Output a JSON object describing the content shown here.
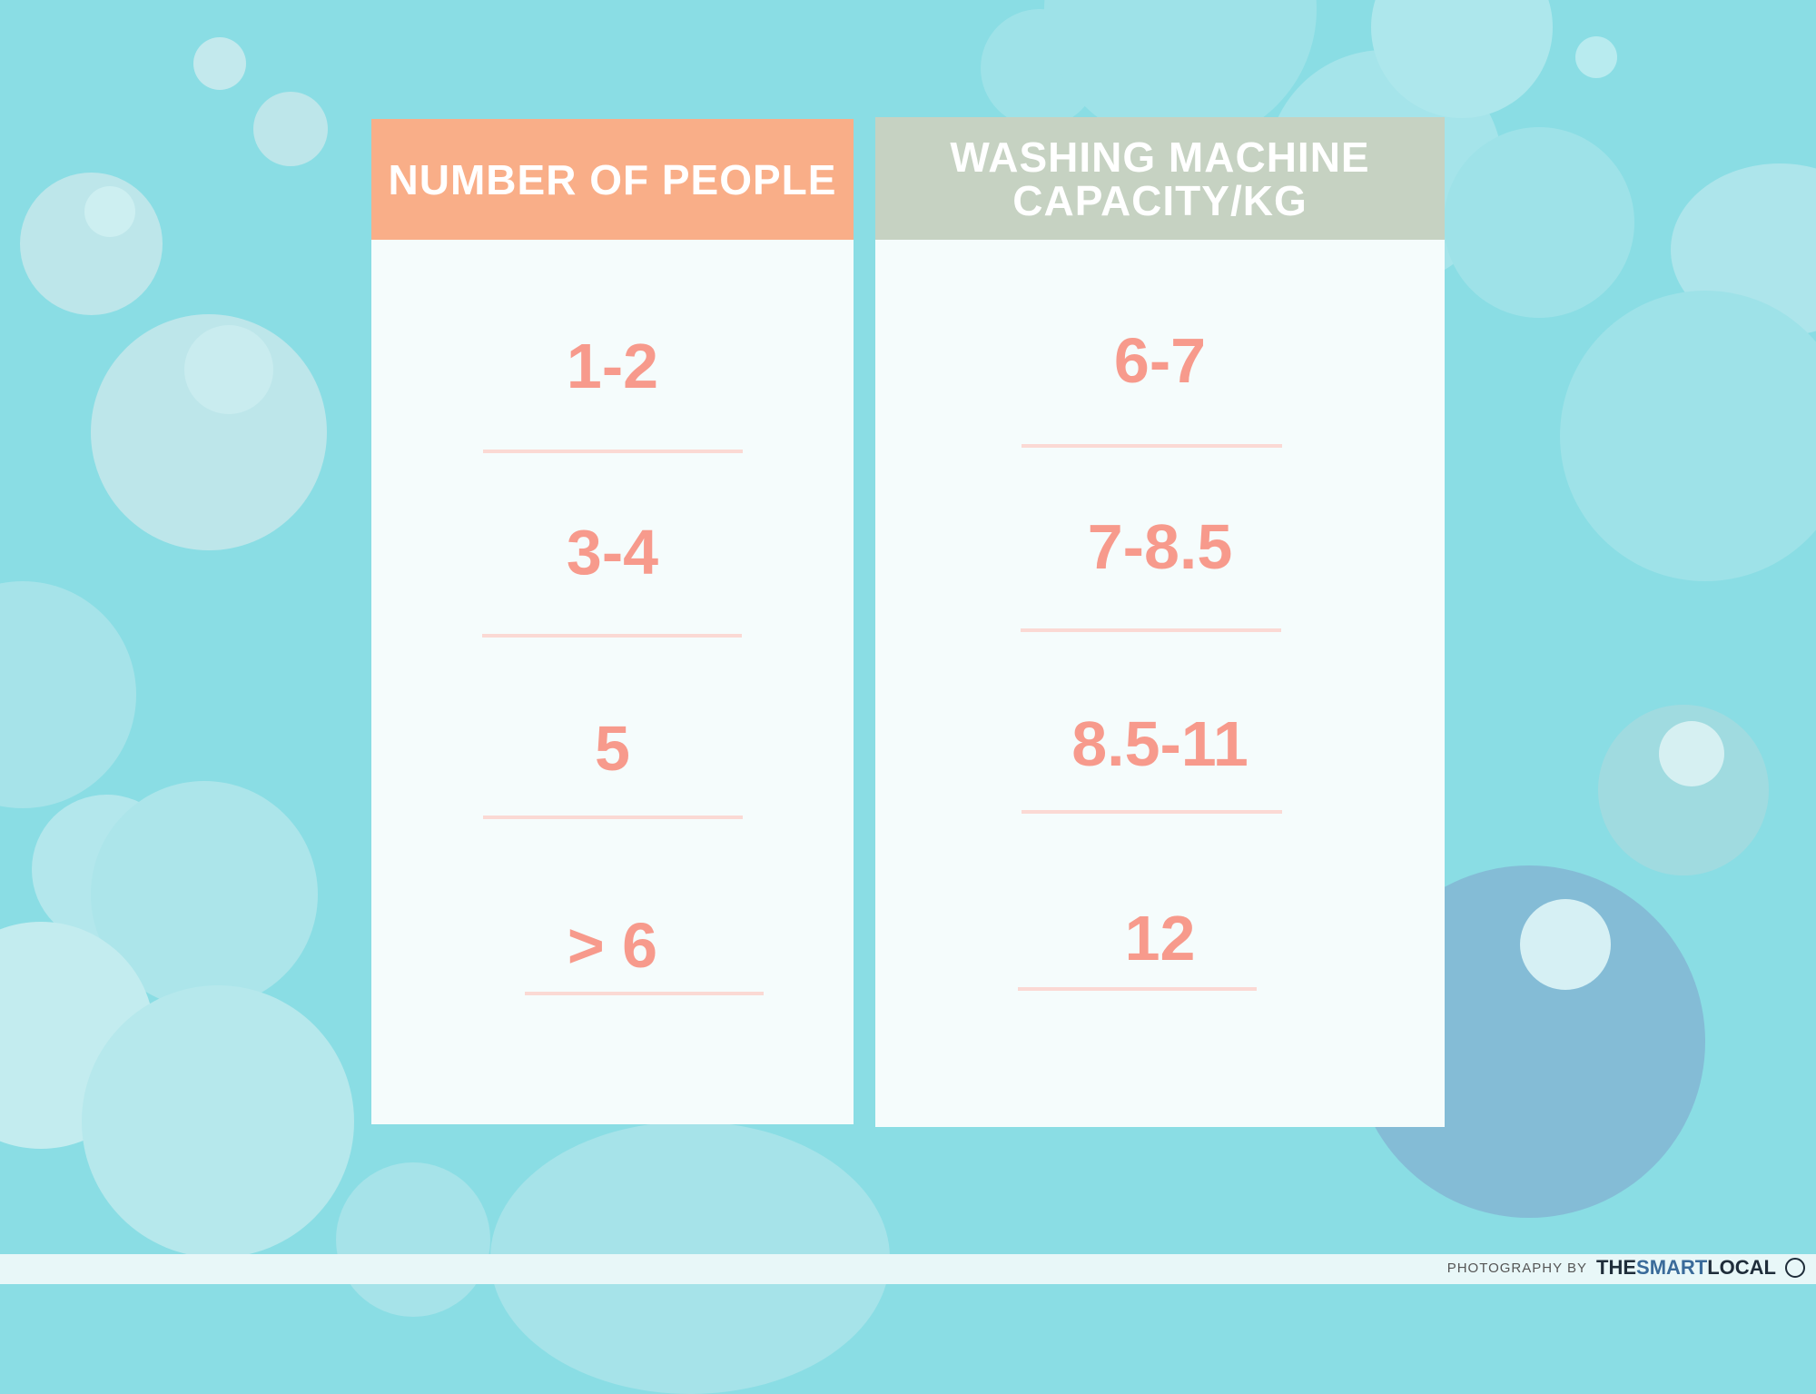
{
  "colors": {
    "background": "#8adde4",
    "people_header": "#f9ae88",
    "capacity_header": "#c6d2c2",
    "value_text": "#f79a8c",
    "divider": "#fbd9d4"
  },
  "people": {
    "header": "NUMBER OF PEOPLE",
    "rows": [
      "1-2",
      "3-4",
      "5",
      "> 6"
    ]
  },
  "capacity": {
    "header_line1": "WASHING MACHINE",
    "header_line2": "CAPACITY/KG",
    "rows": [
      "6-7",
      "7-8.5",
      "8.5-11",
      "12"
    ]
  },
  "credit": {
    "prefix": "PHOTOGRAPHY BY",
    "brand_a": "THE",
    "brand_b": "SMART",
    "brand_c": "LOCAL"
  }
}
